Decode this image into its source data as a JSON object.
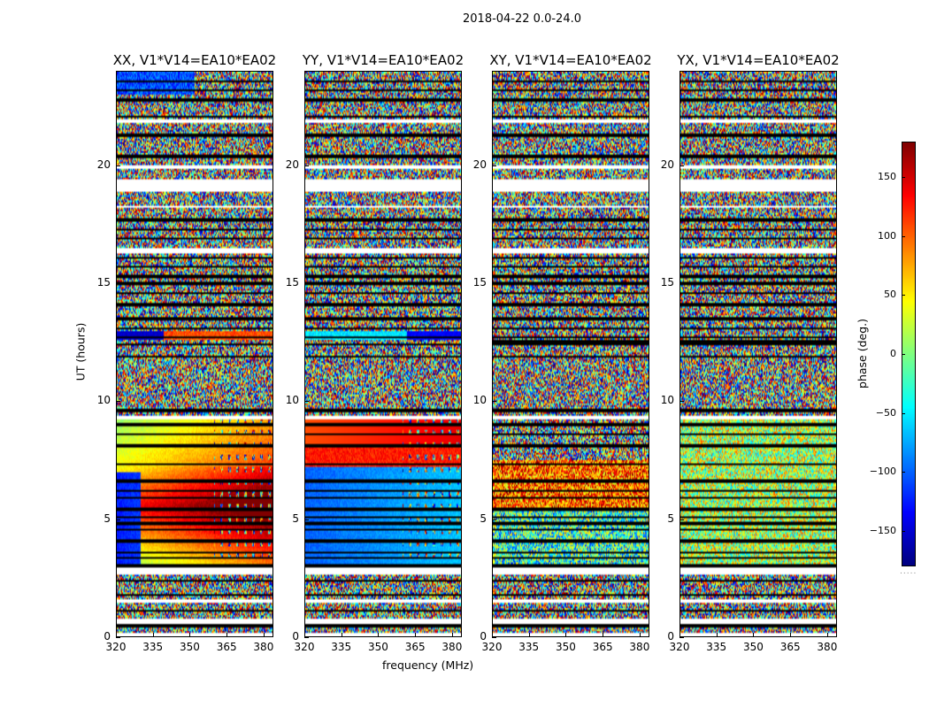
{
  "figure_title": "2018-04-22 0.0-24.0",
  "xlabel": "frequency (MHz)",
  "ylabel": "UT (hours)",
  "colorbar_label": "phase (deg.)",
  "chart_data": [
    {
      "type": "heatmap",
      "title": "XX, V1*V14=EA10*EA02",
      "x_ticks": [
        320,
        335,
        350,
        365,
        380
      ],
      "y_ticks": [
        0,
        5,
        10,
        15,
        20
      ],
      "xlim": [
        320,
        384
      ],
      "ylim": [
        0,
        24
      ],
      "pattern": "xx"
    },
    {
      "type": "heatmap",
      "title": "YY, V1*V14=EA10*EA02",
      "x_ticks": [
        320,
        335,
        350,
        365,
        380
      ],
      "y_ticks": [
        0,
        5,
        10,
        15,
        20
      ],
      "xlim": [
        320,
        384
      ],
      "ylim": [
        0,
        24
      ],
      "pattern": "yy"
    },
    {
      "type": "heatmap",
      "title": "XY, V1*V14=EA10*EA02",
      "x_ticks": [
        320,
        335,
        350,
        365,
        380
      ],
      "y_ticks": [
        0,
        5,
        10,
        15,
        20
      ],
      "xlim": [
        320,
        384
      ],
      "ylim": [
        0,
        24
      ],
      "pattern": "xy"
    },
    {
      "type": "heatmap",
      "title": "YX, V1*V14=EA10*EA02",
      "x_ticks": [
        320,
        335,
        350,
        365,
        380
      ],
      "y_ticks": [
        0,
        5,
        10,
        15,
        20
      ],
      "xlim": [
        320,
        384
      ],
      "ylim": [
        0,
        24
      ],
      "pattern": "yx"
    }
  ],
  "colorbar": {
    "range": [
      -180,
      180
    ],
    "ticks": [
      150,
      100,
      50,
      0,
      -50,
      -100,
      -150
    ],
    "tick_labels": [
      "150",
      "100",
      "50",
      "0",
      "−50",
      "−100",
      "−150"
    ],
    "colormap": "jet"
  }
}
